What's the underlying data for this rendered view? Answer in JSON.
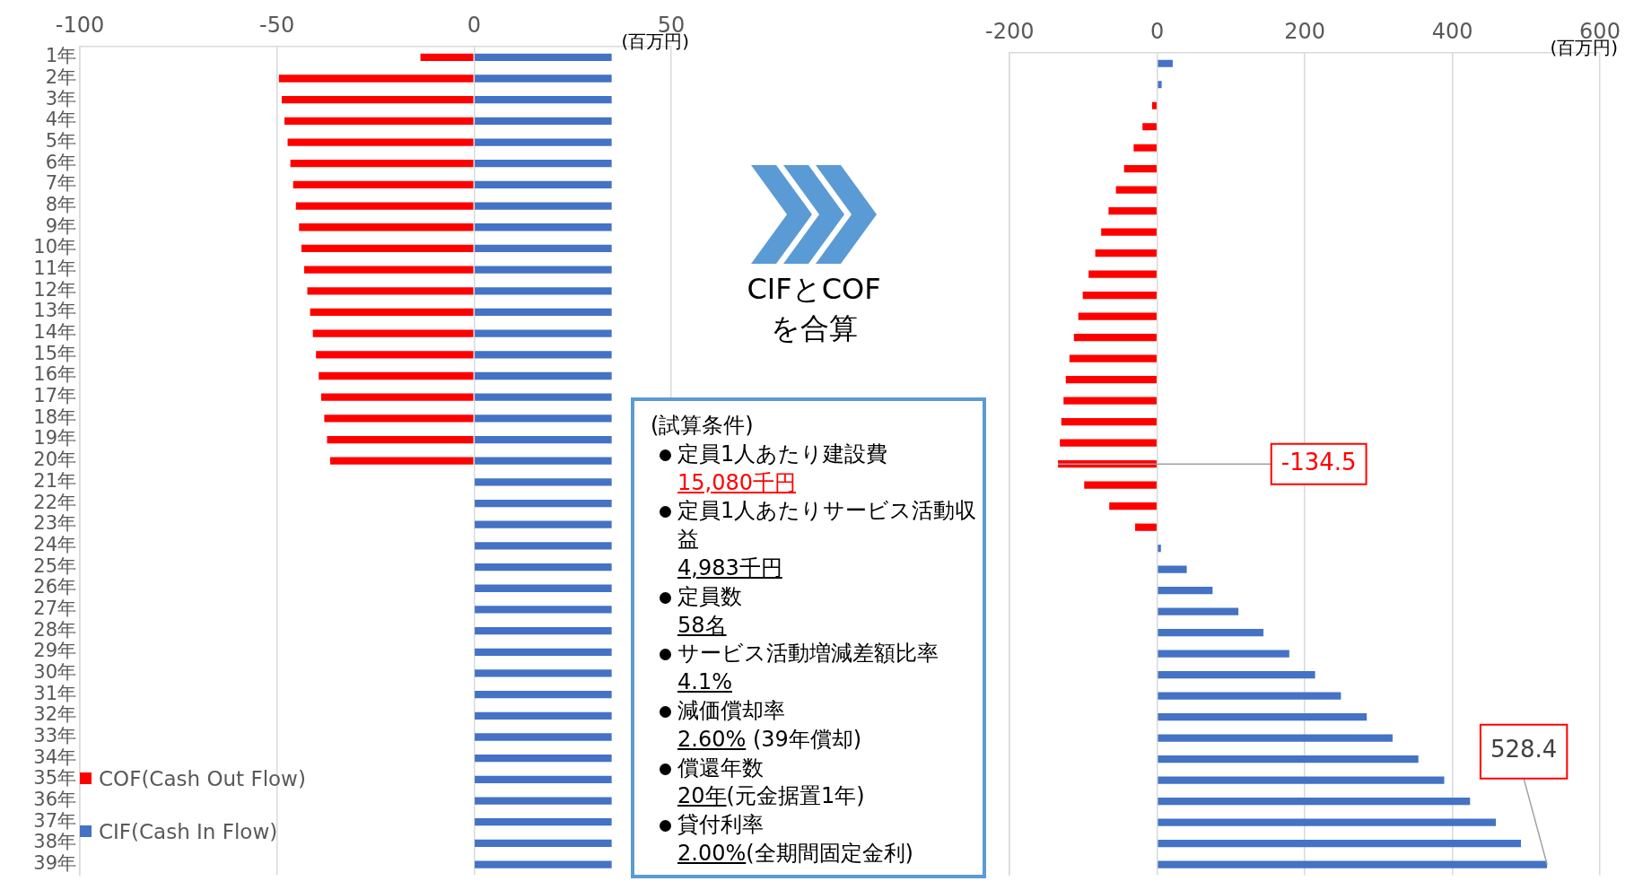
{
  "chart_data": [
    {
      "type": "bar",
      "orientation": "horizontal",
      "stacked": true,
      "categories": [
        "1年",
        "2年",
        "3年",
        "4年",
        "5年",
        "6年",
        "7年",
        "8年",
        "9年",
        "10年",
        "11年",
        "12年",
        "13年",
        "14年",
        "15年",
        "16年",
        "17年",
        "18年",
        "19年",
        "20年",
        "21年",
        "22年",
        "23年",
        "24年",
        "25年",
        "26年",
        "27年",
        "28年",
        "29年",
        "30年",
        "31年",
        "32年",
        "33年",
        "34年",
        "35年",
        "36年",
        "37年",
        "38年",
        "39年"
      ],
      "series": [
        {
          "name": "COF(Cash Out Flow)",
          "color": "#ff0000",
          "values": [
            -13.6,
            -49.5,
            -48.8,
            -48.1,
            -47.3,
            -46.6,
            -45.9,
            -45.2,
            -44.4,
            -43.8,
            -43.1,
            -42.3,
            -41.6,
            -40.9,
            -40.1,
            -39.4,
            -38.8,
            -38.0,
            -37.3,
            -36.5,
            null,
            null,
            null,
            null,
            null,
            null,
            null,
            null,
            null,
            null,
            null,
            null,
            null,
            null,
            null,
            null,
            null,
            null,
            null
          ]
        },
        {
          "name": "CIF(Cash In Flow)",
          "color": "#4472c4",
          "values": [
            34.9,
            34.9,
            34.9,
            34.9,
            34.9,
            34.9,
            34.9,
            34.9,
            34.9,
            34.9,
            34.9,
            34.9,
            34.9,
            34.9,
            34.9,
            34.9,
            34.9,
            34.9,
            34.9,
            34.9,
            34.9,
            34.9,
            34.9,
            34.9,
            34.9,
            34.9,
            34.9,
            34.9,
            34.9,
            34.9,
            34.9,
            34.9,
            34.9,
            34.9,
            34.9,
            34.9,
            34.9,
            34.9,
            34.9
          ]
        }
      ],
      "xlim": [
        -100,
        50
      ],
      "xticks": [
        -100,
        -50,
        0,
        50
      ],
      "xlabel": "(百万円)",
      "grid": "x",
      "legend": "bottom left"
    },
    {
      "type": "other",
      "title": "CIFとCOF\nを合算",
      "subtitle": "(試算条件)",
      "annotations": [
        "定員1人あたり建設費",
        "15,080千円",
        "定員1人あたりサービス活動収益",
        "4,983千円",
        "定員数",
        "58名",
        "サービス活動増減差額比率",
        "4.1%",
        "減価償却率",
        "2.60% (39年償却)",
        "償還年数",
        "20年(元金据置1年)",
        "貸付利率",
        "2.00%(全期間固定金利)"
      ]
    },
    {
      "type": "bar",
      "orientation": "horizontal",
      "categories": [
        null,
        null,
        null,
        null,
        null,
        null,
        null,
        null,
        null,
        null,
        null,
        null,
        null,
        null,
        null,
        null,
        null,
        null,
        null,
        null,
        null,
        null,
        null,
        null,
        null,
        null,
        null,
        null,
        null,
        null,
        null,
        null,
        null,
        null,
        null,
        null,
        null,
        null,
        null
      ],
      "values": [
        21,
        6,
        -7,
        -20,
        -32,
        -45,
        -56,
        -66,
        -76,
        -84,
        -93,
        -101,
        -107,
        -113,
        -119,
        -124,
        -127,
        -130,
        -132,
        -134.5,
        -99,
        -65,
        -30,
        5,
        40,
        75,
        110,
        144,
        179,
        214,
        249,
        284,
        319,
        354,
        389,
        424,
        459,
        493,
        528.4
      ],
      "colors": [
        "#4472c4",
        "#4472c4",
        "#ff0000",
        "#ff0000",
        "#ff0000",
        "#ff0000",
        "#ff0000",
        "#ff0000",
        "#ff0000",
        "#ff0000",
        "#ff0000",
        "#ff0000",
        "#ff0000",
        "#ff0000",
        "#ff0000",
        "#ff0000",
        "#ff0000",
        "#ff0000",
        "#ff0000",
        "#ff0000",
        "#ff0000",
        "#ff0000",
        "#ff0000",
        "#4472c4",
        "#4472c4",
        "#4472c4",
        "#4472c4",
        "#4472c4",
        "#4472c4",
        "#4472c4",
        "#4472c4",
        "#4472c4",
        "#4472c4",
        "#4472c4",
        "#4472c4",
        "#4472c4",
        "#4472c4",
        "#4472c4",
        "#4472c4"
      ],
      "value_labels": [
        null,
        null,
        null,
        null,
        null,
        null,
        null,
        null,
        null,
        null,
        null,
        null,
        null,
        null,
        null,
        null,
        null,
        null,
        null,
        "-134.5",
        null,
        null,
        null,
        null,
        null,
        null,
        null,
        null,
        null,
        null,
        null,
        null,
        null,
        null,
        null,
        null,
        null,
        null,
        "528.4"
      ],
      "xlim": [
        -200,
        600
      ],
      "xticks": [
        -200,
        0,
        200,
        400,
        600
      ],
      "xlabel": "(百万円)",
      "grid": "x"
    }
  ]
}
